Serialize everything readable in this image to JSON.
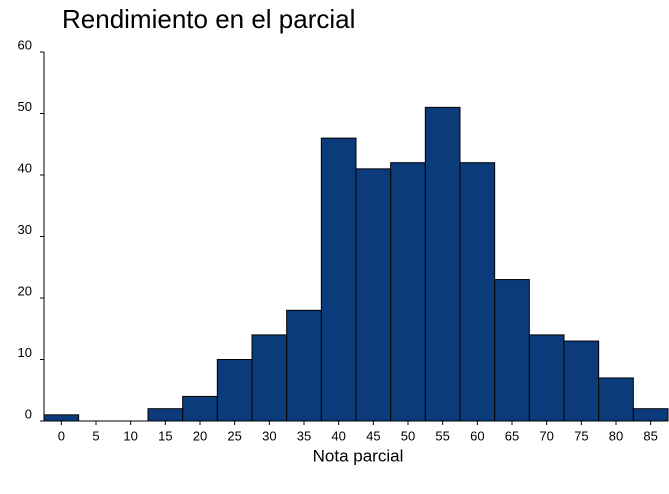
{
  "chart_data": {
    "type": "histogram",
    "title": "Rendimiento en el parcial",
    "x_label": "Nota parcial",
    "bins": [
      -2.5,
      2.5,
      7.5,
      12.5,
      17.5,
      22.5,
      27.5,
      32.5,
      37.5,
      42.5,
      47.5,
      52.5,
      57.5,
      62.5,
      67.5,
      72.5,
      77.5,
      82.5,
      87.5
    ],
    "values": [
      1,
      0,
      0,
      2,
      4,
      10,
      14,
      18,
      46,
      41,
      42,
      51,
      42,
      23,
      14,
      13,
      7,
      2
    ],
    "color": "#0c3b7c",
    "xlim": [
      -2.5,
      87.5
    ],
    "xticks": [
      0,
      5,
      10,
      15,
      20,
      25,
      30,
      35,
      40,
      45,
      50,
      55,
      60,
      65,
      70,
      75,
      80,
      85
    ],
    "ylim": [
      0,
      60
    ],
    "yticks": [
      0,
      10,
      20,
      30,
      40,
      50,
      60
    ],
    "grid": false
  }
}
